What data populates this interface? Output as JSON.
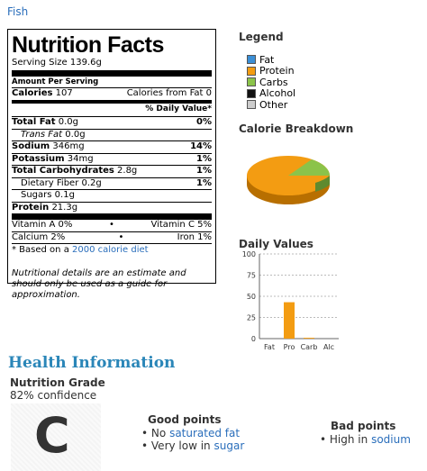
{
  "top_link": "Fish",
  "label": {
    "title": "Nutrition Facts",
    "serving_size": "Serving Size 139.6g",
    "amount_per_serving": "Amount Per Serving",
    "calories_label": "Calories",
    "calories_value": "107",
    "calories_from_fat": "Calories from Fat 0",
    "daily_value_header": "% Daily Value*",
    "rows": [
      {
        "name": "Total Fat",
        "amount": "0.0g",
        "pct": "0%"
      },
      {
        "name": "Trans Fat",
        "amount": "0.0g",
        "pct": ""
      },
      {
        "name": "Sodium",
        "amount": "346mg",
        "pct": "14%"
      },
      {
        "name": "Potassium",
        "amount": "34mg",
        "pct": "1%"
      },
      {
        "name": "Total Carbohydrates",
        "amount": "2.8g",
        "pct": "1%"
      },
      {
        "name": "Dietary Fiber",
        "amount": "0.2g",
        "pct": "1%"
      },
      {
        "name": "Sugars",
        "amount": "0.1g",
        "pct": ""
      },
      {
        "name": "Protein",
        "amount": "21.3g",
        "pct": ""
      }
    ],
    "vitamin_a": "Vitamin A 0%",
    "vitamin_c": "Vitamin C 5%",
    "calcium": "Calcium 2%",
    "iron": "Iron 1%",
    "bullet": "•",
    "footnote_prefix": "* Based on a",
    "footnote_link": "2000 calorie diet",
    "disclaimer": "Nutritional details are an estimate and should only be used as a guide for approximation."
  },
  "legend": {
    "title": "Legend",
    "items": [
      {
        "label": "Fat",
        "color": "#3b8fd6"
      },
      {
        "label": "Protein",
        "color": "#f39c12"
      },
      {
        "label": "Carbs",
        "color": "#8bc34a"
      },
      {
        "label": "Alcohol",
        "color": "#111111"
      },
      {
        "label": "Other",
        "color": "#cccccc"
      }
    ]
  },
  "calorie_breakdown": {
    "title": "Calorie Breakdown",
    "slices": [
      {
        "name": "Protein",
        "value": 89,
        "color": "#f39c12"
      },
      {
        "name": "Carbs",
        "value": 11,
        "color": "#8bc34a"
      }
    ]
  },
  "chart_data": {
    "type": "bar",
    "title": "Daily Values",
    "categories": [
      "Fat",
      "Pro",
      "Carb",
      "Alc"
    ],
    "values": [
      0,
      43,
      1,
      0
    ],
    "ylim": [
      0,
      100
    ],
    "yticks": [
      "100",
      "75",
      "50",
      "25",
      "0"
    ],
    "bar_color": "#f39c12",
    "grid": true
  },
  "health": {
    "title": "Health Information",
    "grade_label": "Nutrition Grade",
    "confidence": "82% confidence",
    "grade": "C",
    "good_title": "Good points",
    "good_points": [
      {
        "prefix": "No",
        "link": "saturated fat"
      },
      {
        "prefix": "Very low in",
        "link": "sugar"
      }
    ],
    "bad_title": "Bad points",
    "bad_points": [
      {
        "prefix": "High in",
        "link": "sodium"
      }
    ]
  }
}
